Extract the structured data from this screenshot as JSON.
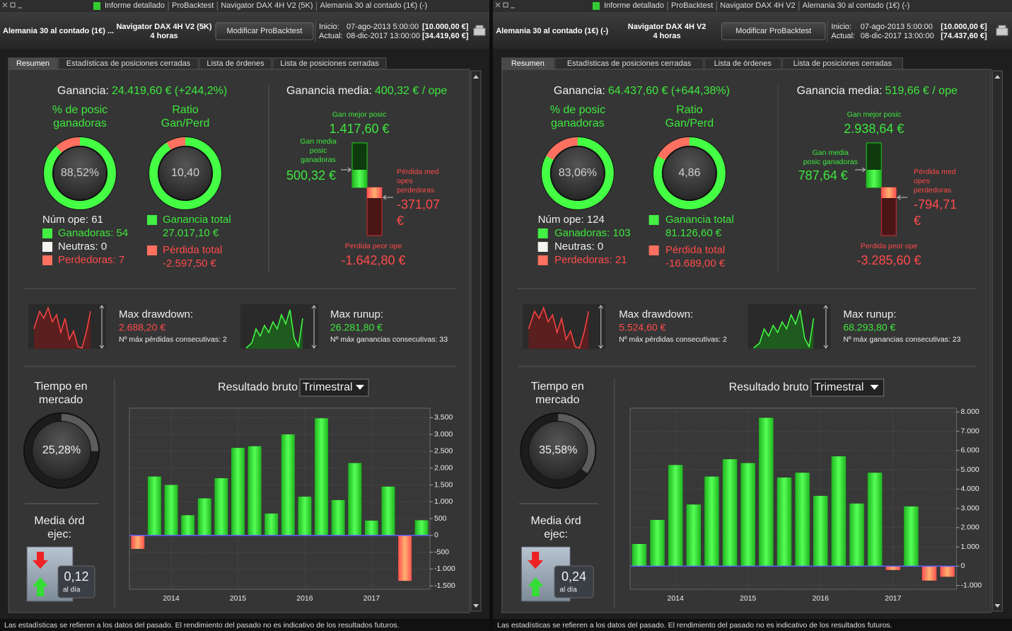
{
  "panels": [
    {
      "window_tabs": [
        "Informe detallado",
        "ProBacktest",
        "Navigator DAX 4H V2 (5K)",
        "Alemania 30 al contado (1€) (-)"
      ],
      "header": {
        "instrument": "Alemania 30 al contado (1€) ...",
        "system": "Navigator DAX 4H V2 (5K)",
        "timeframe": "4 horas",
        "button": "Modificar ProBacktest",
        "start_label": "Inicio:",
        "start_date": "07-ago-2013 5:00:00",
        "start_capital": "[10.000,00 €]",
        "current_label": "Actual:",
        "current_date": "08-dic-2017 13:00:00",
        "current_capital": "[34.419,60 €]"
      },
      "tabs": [
        "Resumen",
        "Estadísticas de posiciones cerradas",
        "Lista de órdenes",
        "Lista de posiciones cerradas"
      ],
      "summary": {
        "gain_label": "Ganancia:",
        "gain": "24.419,60 € (+244,2%)",
        "win_pct_title": [
          "% de posic",
          "ganadoras"
        ],
        "win_pct": {
          "value": 88.52,
          "label": "88,52%"
        },
        "ratio_title": [
          "Ratio",
          "Gan/Perd"
        ],
        "ratio": {
          "value": 10.4,
          "label": "10,40"
        },
        "num_ops": "Núm ope: 61",
        "winners": "Ganadoras: 54",
        "neutral": "Neutras: 0",
        "losers": "Perdedoras: 7",
        "total_gain_label": "Ganancia total",
        "total_gain": "27.017,10 €",
        "total_loss_label": "Pérdida total",
        "total_loss": "-2.597,50 €"
      },
      "average": {
        "label": "Ganancia media:",
        "value": "400,32 € / ope",
        "best_label": "Gan mejor posic",
        "best": "1.417,60 €",
        "avg_win_label": [
          "Gan media",
          "posic",
          "ganadoras"
        ],
        "avg_win": "500,32 €",
        "avg_loss_label": [
          "Pérdida med",
          "opes",
          "perdedoras"
        ],
        "avg_loss": [
          "-371,07",
          "€"
        ],
        "worst_label": "Perdida peor ope",
        "worst": "-1.642,80 €"
      },
      "drawdown": {
        "label": "Max drawdown:",
        "value": "2.688,20 €",
        "streak": "Nº máx pérdidas consecutivas: 2"
      },
      "runup": {
        "label": "Max runup:",
        "value": "26.281,80 €",
        "streak": "Nº máx ganancias consecutivas: 33"
      },
      "market": {
        "title": [
          "Tiempo en",
          "mercado"
        ],
        "value": {
          "value": 25.28,
          "label": "25,28%"
        }
      },
      "orders": {
        "title": [
          "Media órd",
          "ejec:"
        ],
        "value": "0,12",
        "unit": "al día"
      },
      "chart": {
        "type": "bar",
        "title": "Resultado bruto",
        "period": "Trimestral",
        "categories": [
          null,
          null,
          "2014",
          null,
          null,
          null,
          "2015",
          null,
          null,
          null,
          "2016",
          null,
          null,
          null,
          "2017",
          null,
          null,
          null
        ],
        "values": [
          -400,
          1750,
          1500,
          600,
          1100,
          1700,
          2600,
          2650,
          650,
          3000,
          1150,
          3480,
          1050,
          2150,
          440,
          1450,
          -1350,
          450
        ],
        "ylim": [
          -1600,
          3780
        ],
        "yticks": [
          {
            "value": 3500,
            "label": "3.500"
          },
          {
            "value": 3000,
            "label": "3.000"
          },
          {
            "value": 2500,
            "label": "2.500"
          },
          {
            "value": 2000,
            "label": "2.000"
          },
          {
            "value": 1500,
            "label": "1.500"
          },
          {
            "value": 1000,
            "label": "1.000"
          },
          500,
          0,
          -500,
          {
            "value": -1000,
            "label": "-1.000"
          },
          {
            "value": -1500,
            "label": "-1.500"
          }
        ]
      },
      "footer": "Las estadísticas se refieren a los datos del pasado. El rendimiento del pasado no es indicativo de los resultados futuros."
    },
    {
      "window_tabs": [
        "Informe detallado",
        "ProBacktest",
        "Navigator DAX 4H V2",
        "Alemania 30 al contado (1€) (-)"
      ],
      "header": {
        "instrument": "Alemania 30 al contado (1€) (-)",
        "system": "Navigator DAX 4H V2",
        "timeframe": "4 horas",
        "button": "Modificar ProBacktest",
        "start_label": "Inicio:",
        "start_date": "07-ago-2013 5:00:00",
        "start_capital": "[10.000,00 €]",
        "current_label": "Actual:",
        "current_date": "08-dic-2017 13:00:00",
        "current_capital": "[74.437,60 €]"
      },
      "tabs": [
        "Resumen",
        "Estadísticas de posiciones cerradas",
        "Lista de órdenes",
        "Lista de posiciones cerradas"
      ],
      "summary": {
        "gain_label": "Ganancia:",
        "gain": "64.437,60 € (+644,38%)",
        "win_pct_title": [
          "% de posic",
          "ganadoras"
        ],
        "win_pct": {
          "value": 83.06,
          "label": "83,06%"
        },
        "ratio_title": [
          "Ratio",
          "Gan/Perd"
        ],
        "ratio": {
          "value": 4.86,
          "label": "4,86"
        },
        "num_ops": "Núm ope: 124",
        "winners": "Ganadoras: 103",
        "neutral": "Neutras: 0",
        "losers": "Perdedoras: 21",
        "total_gain_label": "Ganancia total",
        "total_gain": "81.126,60 €",
        "total_loss_label": "Pérdida total",
        "total_loss": "-16.689,00 €"
      },
      "average": {
        "label": "Ganancia media:",
        "value": "519,66 € / ope",
        "best_label": "Gan mejor posic",
        "best": "2.938,64 €",
        "avg_win_label": [
          "Gan media",
          "posic ganadoras"
        ],
        "avg_win": "787,64 €",
        "avg_loss_label": [
          "Pérdida med",
          "opes",
          "perdedoras"
        ],
        "avg_loss": [
          "-794,71",
          "€"
        ],
        "worst_label": "Perdida peor ope",
        "worst": "-3.285,60 €"
      },
      "drawdown": {
        "label": "Max drawdown:",
        "value": "5.524,60 €",
        "streak": "Nº máx pérdidas consecutivas: 2"
      },
      "runup": {
        "label": "Max runup:",
        "value": "68.293,80 €",
        "streak": "Nº máx ganancias consecutivas: 23"
      },
      "market": {
        "title": [
          "Tiempo en",
          "mercado"
        ],
        "value": {
          "value": 35.58,
          "label": "35,58%"
        }
      },
      "orders": {
        "title": [
          "Media órd",
          "ejec:"
        ],
        "value": "0,24",
        "unit": "al día"
      },
      "chart": {
        "type": "bar",
        "title": "Resultado bruto",
        "period": "Trimestral",
        "categories": [
          null,
          null,
          "2014",
          null,
          null,
          null,
          "2015",
          null,
          null,
          null,
          "2016",
          null,
          null,
          null,
          "2017",
          null,
          null,
          null
        ],
        "values": [
          1150,
          2400,
          5250,
          3200,
          4650,
          5550,
          5350,
          7700,
          4600,
          4850,
          3650,
          5700,
          3250,
          4850,
          -200,
          3100,
          -750,
          -550
        ],
        "ylim": [
          -1200,
          8200
        ],
        "yticks": [
          {
            "value": 8000,
            "label": "8.000"
          },
          {
            "value": 7000,
            "label": "7.000"
          },
          {
            "value": 6000,
            "label": "6.000"
          },
          {
            "value": 5000,
            "label": "5.000"
          },
          {
            "value": 4000,
            "label": "4.000"
          },
          {
            "value": 3000,
            "label": "3.000"
          },
          {
            "value": 2000,
            "label": "2.000"
          },
          {
            "value": 1000,
            "label": "1.000"
          },
          0,
          {
            "value": -1000,
            "label": "-1.000"
          }
        ]
      },
      "footer": "Las estadísticas se refieren a los datos del pasado. El rendimiento del pasado no es indicativo de los resultados futuros."
    }
  ]
}
